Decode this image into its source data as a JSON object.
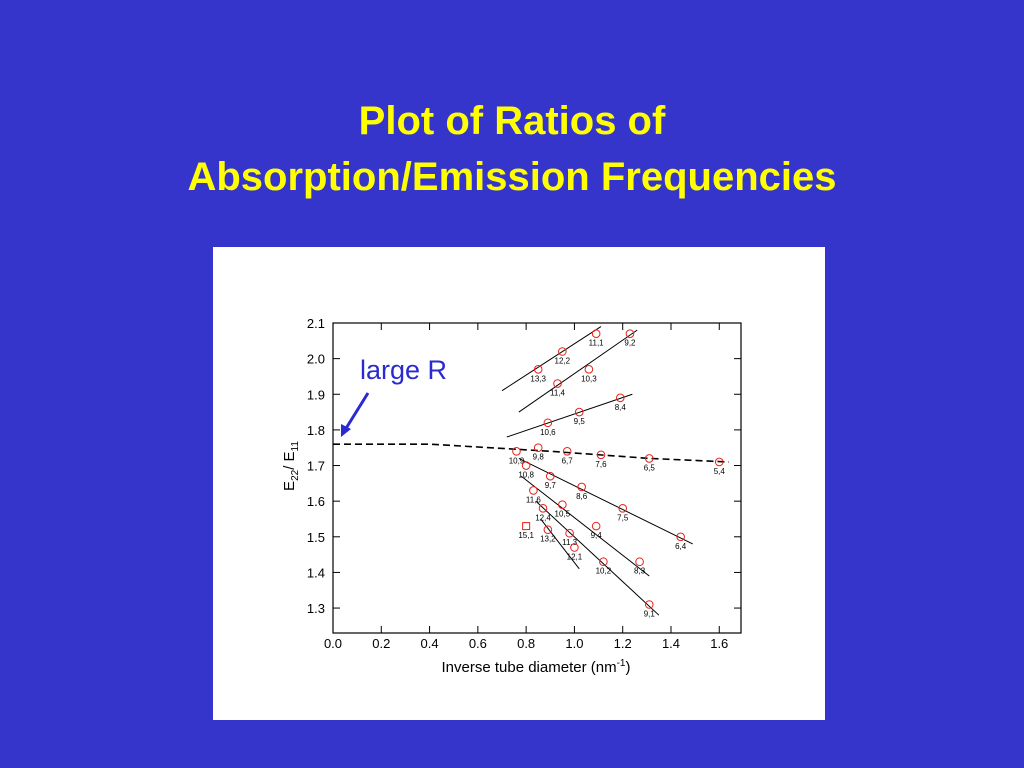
{
  "chart_data": {
    "type": "scatter",
    "title_lines": [
      "Plot of Ratios of",
      "Absorption/Emission Frequencies"
    ],
    "xlabel_parts": [
      "Inverse tube diameter (nm",
      "-1",
      ")"
    ],
    "ylabel_parts": [
      "E",
      "22",
      "/ E",
      "11"
    ],
    "annotation": "large R",
    "xlim": [
      0,
      1.69
    ],
    "ylim": [
      1.23,
      2.1
    ],
    "xticks": [
      {
        "value": 0,
        "label": "0.0"
      },
      0.2,
      0.4,
      0.6,
      0.8,
      {
        "value": 1,
        "label": "1.0"
      },
      1.2,
      1.4,
      1.6
    ],
    "yticks": [
      1.3,
      1.4,
      1.5,
      1.6,
      1.7,
      1.8,
      1.9,
      {
        "value": 2,
        "label": "2.0"
      },
      2.1
    ],
    "color": "#e8201a",
    "point_labels": [
      "11,1",
      "9,2",
      "12,2",
      "13,3",
      "10,3",
      "11,4",
      "8,4",
      "9,5",
      "10,6",
      "10,9",
      "9,8",
      "6,7",
      "7,6",
      "6,5",
      "5,4",
      "10,8",
      "9,7",
      "8,6",
      "7,5",
      "11,6",
      "10,5",
      "6,4",
      "12,4",
      "9,4",
      "15,1",
      "13,2",
      "11,3",
      "12,1",
      "8,3",
      "10,2",
      "9,1"
    ],
    "markers": [
      "circle",
      "circle",
      "circle",
      "circle",
      "circle",
      "circle",
      "circle",
      "circle",
      "circle",
      "circle",
      "circle",
      "circle",
      "circle",
      "circle",
      "circle",
      "circle",
      "circle",
      "circle",
      "circle",
      "circle",
      "circle",
      "circle",
      "circle",
      "circle",
      "square",
      "circle",
      "circle",
      "circle",
      "circle",
      "circle",
      "circle"
    ],
    "x": [
      1.09,
      1.23,
      0.95,
      0.85,
      1.06,
      0.93,
      1.19,
      1.02,
      0.89,
      0.76,
      0.85,
      0.97,
      1.11,
      1.31,
      1.6,
      0.8,
      0.9,
      1.03,
      1.2,
      0.83,
      0.95,
      1.44,
      0.87,
      1.09,
      0.8,
      0.89,
      0.98,
      1.0,
      1.27,
      1.12,
      1.31
    ],
    "y": [
      2.07,
      2.07,
      2.02,
      1.97,
      1.97,
      1.93,
      1.89,
      1.85,
      1.82,
      1.74,
      1.75,
      1.74,
      1.73,
      1.72,
      1.71,
      1.7,
      1.67,
      1.64,
      1.58,
      1.63,
      1.59,
      1.5,
      1.58,
      1.53,
      1.53,
      1.52,
      1.51,
      1.47,
      1.43,
      1.43,
      1.31
    ],
    "fit_lines": [
      {
        "x": [
          0.7,
          1.11
        ],
        "y": [
          1.91,
          2.09
        ]
      },
      {
        "x": [
          0.77,
          1.26
        ],
        "y": [
          1.85,
          2.08
        ]
      },
      {
        "x": [
          0.72,
          1.24
        ],
        "y": [
          1.78,
          1.9
        ]
      },
      {
        "x": [
          0.77,
          1.49
        ],
        "y": [
          1.72,
          1.48
        ]
      },
      {
        "x": [
          0.78,
          1.31
        ],
        "y": [
          1.67,
          1.39
        ]
      },
      {
        "x": [
          0.84,
          1.35
        ],
        "y": [
          1.6,
          1.28
        ]
      },
      {
        "x": [
          0.86,
          1.02
        ],
        "y": [
          1.55,
          1.41
        ]
      }
    ],
    "dashed_curve": {
      "x": [
        0,
        0.4,
        0.9,
        1.31,
        1.64
      ],
      "y": [
        1.76,
        1.76,
        1.74,
        1.72,
        1.71
      ]
    }
  }
}
